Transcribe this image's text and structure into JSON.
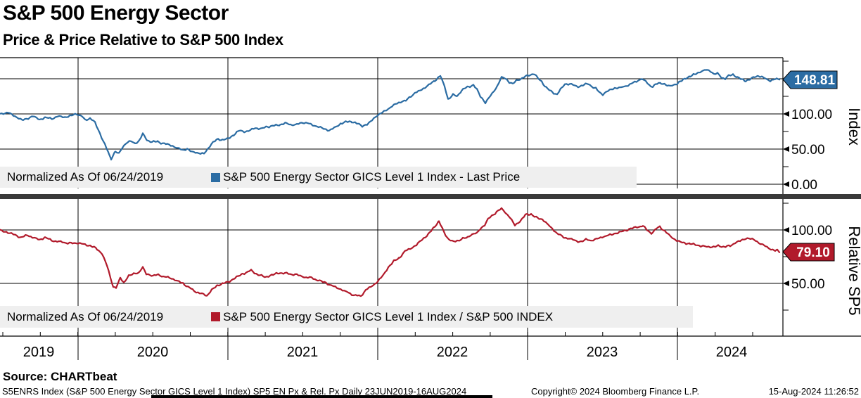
{
  "header": {
    "title": "S&P 500 Energy Sector",
    "subtitle": "Price & Price Relative to S&P 500 Index"
  },
  "chart_data": [
    {
      "type": "line",
      "panel": "top",
      "axis_title": "Index",
      "color": "#2b6ca3",
      "legend": {
        "prefix": "Normalized As Of 06/24/2019",
        "series_label": "S&P 500 Energy Sector GICS Level 1 Index - Last Price"
      },
      "last_value": 148.81,
      "last_value_label": "148.81",
      "ylim": [
        0,
        187
      ],
      "y_ticks": [
        {
          "value": 100,
          "label": "100.00"
        },
        {
          "value": 50,
          "label": "50.00"
        },
        {
          "value": 0,
          "label": "0.00"
        }
      ],
      "x_range": [
        "23JUN2019",
        "16AUG2024"
      ],
      "points": [
        [
          0,
          100
        ],
        [
          12,
          102
        ],
        [
          22,
          96
        ],
        [
          33,
          91
        ],
        [
          47,
          97
        ],
        [
          56,
          92
        ],
        [
          64,
          95
        ],
        [
          74,
          93
        ],
        [
          82,
          97
        ],
        [
          92,
          95
        ],
        [
          102,
          98
        ],
        [
          109,
          100
        ],
        [
          116,
          97
        ],
        [
          121,
          91
        ],
        [
          128,
          94
        ],
        [
          135,
          88
        ],
        [
          142,
          72
        ],
        [
          149,
          57
        ],
        [
          155,
          42
        ],
        [
          158,
          36
        ],
        [
          164,
          47
        ],
        [
          169,
          43
        ],
        [
          174,
          52
        ],
        [
          179,
          59
        ],
        [
          186,
          61
        ],
        [
          192,
          58
        ],
        [
          198,
          62
        ],
        [
          203,
          72
        ],
        [
          209,
          63
        ],
        [
          216,
          60
        ],
        [
          224,
          61
        ],
        [
          231,
          58
        ],
        [
          238,
          57
        ],
        [
          246,
          54
        ],
        [
          252,
          51
        ],
        [
          259,
          49
        ],
        [
          266,
          50
        ],
        [
          273,
          46
        ],
        [
          280,
          45
        ],
        [
          285,
          44
        ],
        [
          290,
          43
        ],
        [
          296,
          51
        ],
        [
          303,
          60
        ],
        [
          310,
          64
        ],
        [
          316,
          63
        ],
        [
          324,
          65
        ],
        [
          332,
          70
        ],
        [
          340,
          76
        ],
        [
          351,
          75
        ],
        [
          363,
          80
        ],
        [
          371,
          79
        ],
        [
          380,
          82
        ],
        [
          390,
          83
        ],
        [
          398,
          85
        ],
        [
          406,
          87
        ],
        [
          414,
          84
        ],
        [
          422,
          85
        ],
        [
          430,
          88
        ],
        [
          437,
          87
        ],
        [
          445,
          84
        ],
        [
          453,
          82
        ],
        [
          461,
          78
        ],
        [
          468,
          77
        ],
        [
          476,
          80
        ],
        [
          484,
          86
        ],
        [
          492,
          89
        ],
        [
          500,
          89
        ],
        [
          508,
          86
        ],
        [
          515,
          83
        ],
        [
          522,
          85
        ],
        [
          529,
          91
        ],
        [
          535,
          97
        ],
        [
          541,
          100
        ],
        [
          547,
          104
        ],
        [
          555,
          109
        ],
        [
          562,
          114
        ],
        [
          570,
          117
        ],
        [
          577,
          119
        ],
        [
          584,
          125
        ],
        [
          590,
          130
        ],
        [
          597,
          133
        ],
        [
          605,
          138
        ],
        [
          612,
          143
        ],
        [
          618,
          147
        ],
        [
          626,
          154
        ],
        [
          632,
          139
        ],
        [
          637,
          121
        ],
        [
          644,
          127
        ],
        [
          650,
          125
        ],
        [
          656,
          133
        ],
        [
          662,
          137
        ],
        [
          668,
          139
        ],
        [
          673,
          141
        ],
        [
          678,
          135
        ],
        [
          683,
          125
        ],
        [
          690,
          116
        ],
        [
          695,
          123
        ],
        [
          700,
          129
        ],
        [
          707,
          140
        ],
        [
          713,
          152
        ],
        [
          718,
          151
        ],
        [
          724,
          145
        ],
        [
          729,
          142
        ],
        [
          734,
          148
        ],
        [
          740,
          150
        ],
        [
          747,
          153
        ],
        [
          754,
          156
        ],
        [
          760,
          157
        ],
        [
          765,
          150
        ],
        [
          770,
          146
        ],
        [
          776,
          138
        ],
        [
          781,
          134
        ],
        [
          787,
          130
        ],
        [
          792,
          128
        ],
        [
          798,
          136
        ],
        [
          803,
          142
        ],
        [
          810,
          143
        ],
        [
          817,
          140
        ],
        [
          824,
          139
        ],
        [
          830,
          141
        ],
        [
          836,
          143
        ],
        [
          841,
          139
        ],
        [
          847,
          136
        ],
        [
          852,
          131
        ],
        [
          857,
          128
        ],
        [
          862,
          131
        ],
        [
          869,
          135
        ],
        [
          875,
          137
        ],
        [
          881,
          137
        ],
        [
          887,
          139
        ],
        [
          893,
          141
        ],
        [
          900,
          144
        ],
        [
          906,
          147
        ],
        [
          912,
          150
        ],
        [
          918,
          146
        ],
        [
          923,
          141
        ],
        [
          928,
          139
        ],
        [
          934,
          143
        ],
        [
          940,
          144
        ],
        [
          946,
          142
        ],
        [
          951,
          139
        ],
        [
          957,
          141
        ],
        [
          963,
          143
        ],
        [
          969,
          147
        ],
        [
          975,
          151
        ],
        [
          981,
          153
        ],
        [
          987,
          156
        ],
        [
          993,
          159
        ],
        [
          999,
          161
        ],
        [
          1005,
          163
        ],
        [
          1010,
          161
        ],
        [
          1015,
          156
        ],
        [
          1020,
          158
        ],
        [
          1026,
          152
        ],
        [
          1031,
          150
        ],
        [
          1036,
          154
        ],
        [
          1042,
          156
        ],
        [
          1048,
          152
        ],
        [
          1054,
          149
        ],
        [
          1060,
          147
        ],
        [
          1066,
          149
        ],
        [
          1072,
          152
        ],
        [
          1078,
          154
        ],
        [
          1084,
          152
        ],
        [
          1090,
          149
        ],
        [
          1095,
          147
        ],
        [
          1100,
          149
        ],
        [
          1104,
          150
        ],
        [
          1108,
          148.81
        ]
      ]
    },
    {
      "type": "line",
      "panel": "bottom",
      "axis_title": "Relative SP5",
      "color": "#b11a2b",
      "legend": {
        "prefix": "Normalized As Of 06/24/2019",
        "series_label": "S&P 500 Energy Sector GICS Level 1 Index / S&P 500 INDEX"
      },
      "last_value": 79.1,
      "last_value_label": "79.10",
      "ylim": [
        0,
        131
      ],
      "y_ticks": [
        {
          "value": 100,
          "label": "100.00"
        },
        {
          "value": 50,
          "label": "50.00"
        }
      ],
      "x_range": [
        "23JUN2019",
        "16AUG2024"
      ],
      "points": [
        [
          0,
          100
        ],
        [
          9,
          98
        ],
        [
          19,
          96
        ],
        [
          29,
          93
        ],
        [
          39,
          95
        ],
        [
          47,
          93
        ],
        [
          56,
          91
        ],
        [
          64,
          93
        ],
        [
          74,
          90
        ],
        [
          84,
          89
        ],
        [
          94,
          88
        ],
        [
          103,
          87.5
        ],
        [
          111,
          88
        ],
        [
          121,
          86
        ],
        [
          129,
          85.5
        ],
        [
          138,
          82
        ],
        [
          145,
          78
        ],
        [
          152,
          67
        ],
        [
          157,
          55
        ],
        [
          161,
          47
        ],
        [
          165,
          46
        ],
        [
          171,
          55
        ],
        [
          176,
          51
        ],
        [
          183,
          57
        ],
        [
          190,
          59
        ],
        [
          197,
          60
        ],
        [
          203,
          65
        ],
        [
          208,
          59
        ],
        [
          217,
          57
        ],
        [
          225,
          58
        ],
        [
          234,
          56
        ],
        [
          244,
          55
        ],
        [
          252,
          52
        ],
        [
          260,
          50
        ],
        [
          269,
          46
        ],
        [
          279,
          42
        ],
        [
          287,
          40
        ],
        [
          294,
          38.5
        ],
        [
          301,
          44
        ],
        [
          309,
          48
        ],
        [
          317,
          50
        ],
        [
          324,
          51
        ],
        [
          334,
          55
        ],
        [
          345,
          59
        ],
        [
          357,
          62
        ],
        [
          367,
          58
        ],
        [
          377,
          56
        ],
        [
          388,
          58
        ],
        [
          398,
          60
        ],
        [
          410,
          59
        ],
        [
          422,
          58
        ],
        [
          433,
          56
        ],
        [
          443,
          55
        ],
        [
          452,
          53
        ],
        [
          461,
          51
        ],
        [
          472,
          48
        ],
        [
          482,
          45
        ],
        [
          493,
          42
        ],
        [
          503,
          39
        ],
        [
          513,
          38
        ],
        [
          520,
          44
        ],
        [
          528,
          47
        ],
        [
          537,
          52
        ],
        [
          545,
          58
        ],
        [
          552,
          65
        ],
        [
          560,
          71
        ],
        [
          568,
          74
        ],
        [
          576,
          80
        ],
        [
          584,
          83
        ],
        [
          592,
          86
        ],
        [
          600,
          91
        ],
        [
          608,
          95
        ],
        [
          616,
          102
        ],
        [
          624,
          108
        ],
        [
          631,
          98
        ],
        [
          638,
          91
        ],
        [
          645,
          89
        ],
        [
          651,
          90
        ],
        [
          658,
          92
        ],
        [
          665,
          93
        ],
        [
          671,
          96
        ],
        [
          678,
          97
        ],
        [
          684,
          102
        ],
        [
          689,
          105
        ],
        [
          694,
          110
        ],
        [
          699,
          113
        ],
        [
          706,
          117
        ],
        [
          713,
          120
        ],
        [
          719,
          116
        ],
        [
          725,
          112
        ],
        [
          732,
          104
        ],
        [
          740,
          109
        ],
        [
          747,
          114
        ],
        [
          755,
          115
        ],
        [
          764,
          111
        ],
        [
          771,
          110
        ],
        [
          779,
          105
        ],
        [
          785,
          101
        ],
        [
          794,
          96
        ],
        [
          802,
          93
        ],
        [
          810,
          92
        ],
        [
          817,
          90
        ],
        [
          826,
          89
        ],
        [
          833,
          91
        ],
        [
          841,
          90
        ],
        [
          849,
          92
        ],
        [
          860,
          94
        ],
        [
          871,
          96
        ],
        [
          881,
          98
        ],
        [
          892,
          100
        ],
        [
          901,
          102
        ],
        [
          908,
          103
        ],
        [
          914,
          104
        ],
        [
          920,
          100
        ],
        [
          926,
          97
        ],
        [
          933,
          101
        ],
        [
          938,
          103
        ],
        [
          945,
          99
        ],
        [
          951,
          95
        ],
        [
          957,
          92
        ],
        [
          965,
          89
        ],
        [
          973,
          88
        ],
        [
          981,
          87
        ],
        [
          989,
          86
        ],
        [
          997,
          85
        ],
        [
          1005,
          84.5
        ],
        [
          1012,
          84
        ],
        [
          1021,
          85
        ],
        [
          1029,
          84.5
        ],
        [
          1038,
          85
        ],
        [
          1045,
          88
        ],
        [
          1053,
          90
        ],
        [
          1060,
          92
        ],
        [
          1067,
          92
        ],
        [
          1074,
          90
        ],
        [
          1082,
          87
        ],
        [
          1088,
          85
        ],
        [
          1096,
          82
        ],
        [
          1102,
          80.5
        ],
        [
          1105,
          81.5
        ],
        [
          1108,
          79.1
        ]
      ]
    }
  ],
  "x_axis": {
    "year_labels": [
      "2019",
      "2020",
      "2021",
      "2022",
      "2023",
      "2024"
    ]
  },
  "footer": {
    "source": "Source: CHARTbeat",
    "info": "S5ENRS Index (S&P 500 Energy Sector GICS Level 1 Index) SP5 EN Px & Rel. Px  Daily 23JUN2019-16AUG2024",
    "copyright": "Copyright© 2024 Bloomberg Finance L.P.",
    "datetime": "15-Aug-2024 11:26:52"
  }
}
